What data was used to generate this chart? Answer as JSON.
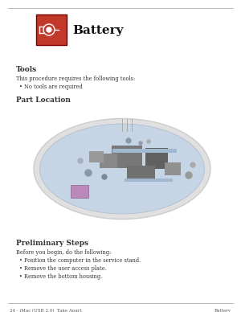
{
  "background_color": "#ffffff",
  "line_color": "#999999",
  "title_text": "Battery",
  "title_fontsize": 11,
  "icon_bg": "#c0392b",
  "icon_border": "#7a0000",
  "section1_heading": "Tools",
  "section1_heading_fontsize": 6.5,
  "section1_body": "This procedure requires the following tools:",
  "section1_body_fontsize": 4.8,
  "section1_bullet": "No tools are required",
  "section2_heading": "Part Location",
  "section2_heading_fontsize": 6.5,
  "section3_heading": "Preliminary Steps",
  "section3_heading_fontsize": 6.5,
  "section3_body": "Before you begin, do the following:",
  "section3_body_fontsize": 4.8,
  "section3_bullets": [
    "Position the computer in the service stand.",
    "Remove the user access plate.",
    "Remove the bottom housing."
  ],
  "footer_left": "24 - iMac (USB 2.0)  Take Apart",
  "footer_right": "Battery",
  "footer_fontsize": 4.0,
  "text_color": "#333333",
  "bullet_char": "•",
  "board_outer_color": "#d8d8d8",
  "board_color": "#c8d8e8",
  "board_edge_color": "#b0b8c8"
}
